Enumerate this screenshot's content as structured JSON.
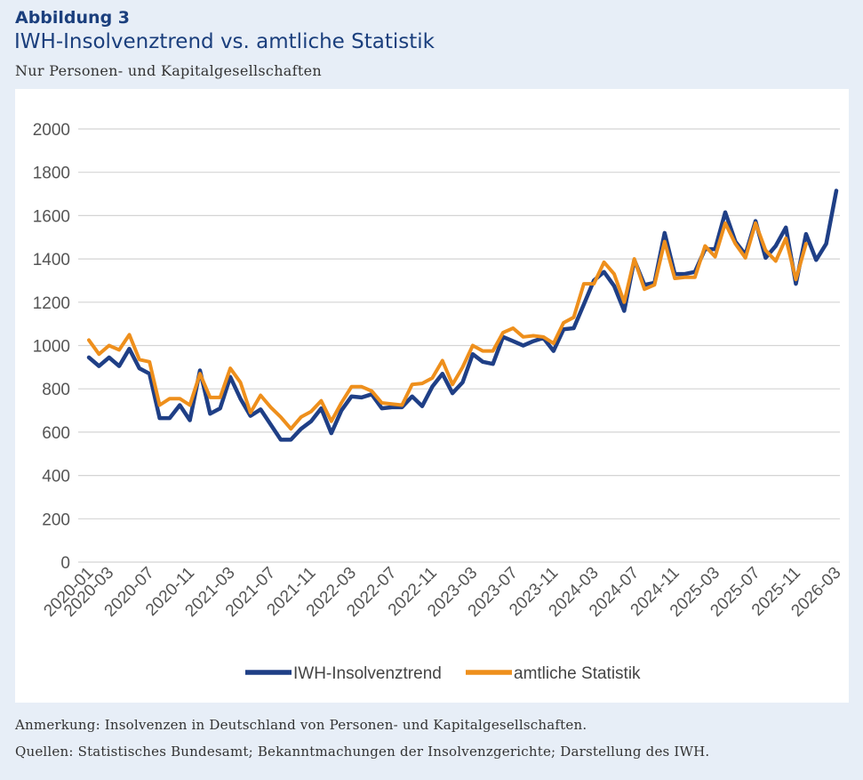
{
  "figure": {
    "label": "Abbildung 3",
    "title": "IWH-Insolvenztrend vs. amtliche Statistik",
    "subtitle": "Nur Personen- und Kapitalgesellschaften",
    "note": "Anmerkung: Insolvenzen in Deutschland von Personen- und Kapitalgesellschaften.",
    "source": "Quellen: Statistisches Bundesamt; Bekanntmachungen der Insolvenzgerichte; Darstellung des IWH."
  },
  "chart_data": {
    "type": "line",
    "title": "",
    "xlabel": "",
    "ylabel": "",
    "ylim": [
      0,
      2000
    ],
    "yticks": [
      0,
      200,
      400,
      600,
      800,
      1000,
      1200,
      1400,
      1600,
      1800,
      2000
    ],
    "grid": "horizontal",
    "legend_position": "bottom",
    "x_tick_labels": [
      "2020-01",
      "2020-03",
      "2020-07",
      "2020-11",
      "2021-03",
      "2021-07",
      "2021-11",
      "2022-03",
      "2022-07",
      "2022-11",
      "2023-03",
      "2023-07",
      "2023-11",
      "2024-03",
      "2024-07",
      "2024-11",
      "2025-03",
      "2025-07",
      "2025-11",
      "2026-03"
    ],
    "x_start": "2020-01",
    "series": [
      {
        "name": "IWH-Insolvenztrend",
        "color": "#1f3f86",
        "values": [
          945,
          905,
          945,
          905,
          985,
          895,
          870,
          665,
          665,
          725,
          655,
          885,
          685,
          710,
          855,
          755,
          675,
          705,
          635,
          565,
          565,
          615,
          650,
          710,
          595,
          700,
          765,
          760,
          775,
          710,
          715,
          715,
          765,
          720,
          810,
          870,
          780,
          830,
          960,
          925,
          915,
          1040,
          1020,
          1000,
          1020,
          1035,
          975,
          1075,
          1080,
          1190,
          1300,
          1340,
          1275,
          1160,
          1395,
          1280,
          1290,
          1520,
          1330,
          1330,
          1340,
          1445,
          1445,
          1615,
          1480,
          1420,
          1575,
          1405,
          1460,
          1545,
          1285,
          1515,
          1395,
          1470,
          1715
        ]
      },
      {
        "name": "amtliche Statistik",
        "color": "#ee8f1c",
        "values": [
          1025,
          960,
          1000,
          980,
          1050,
          935,
          925,
          725,
          755,
          755,
          725,
          870,
          760,
          760,
          895,
          830,
          690,
          770,
          715,
          670,
          615,
          670,
          695,
          745,
          650,
          735,
          810,
          810,
          790,
          735,
          730,
          725,
          820,
          825,
          850,
          930,
          820,
          900,
          1000,
          975,
          975,
          1060,
          1080,
          1040,
          1045,
          1040,
          1010,
          1105,
          1130,
          1285,
          1285,
          1385,
          1330,
          1200,
          1400,
          1260,
          1280,
          1480,
          1310,
          1315,
          1315,
          1460,
          1410,
          1565,
          1470,
          1405,
          1565,
          1440,
          1390,
          1495,
          1305,
          1470,
          null,
          null,
          null
        ]
      }
    ]
  }
}
